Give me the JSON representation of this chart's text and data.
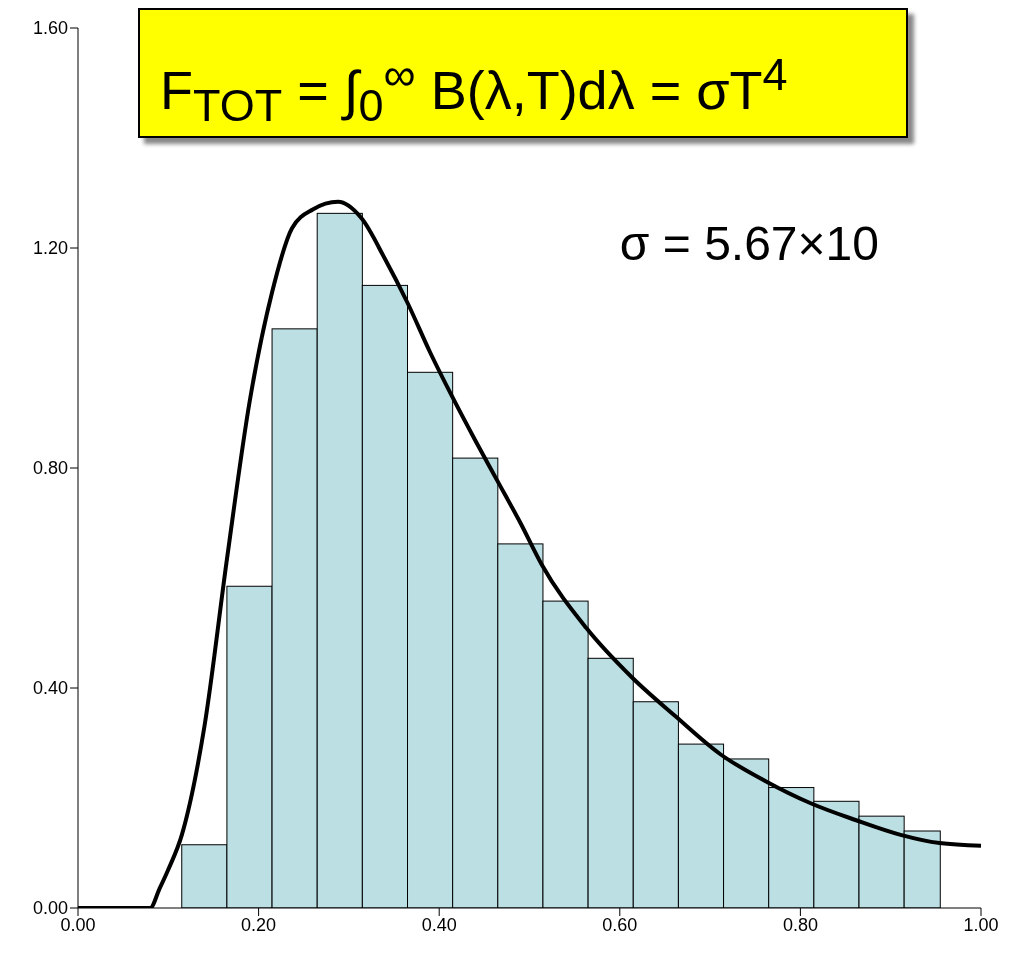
{
  "chart_data": {
    "type": "histogram",
    "title": "F$_{TOT}$ = ∫$_{0}$$^{∞}$ B(λ,T)dλ = σT$^{4}$",
    "annotations": [
      "σ = 5.67×10"
    ],
    "bins": [
      0.115,
      0.165,
      0.215,
      0.265,
      0.315,
      0.365,
      0.415,
      0.465,
      0.515,
      0.565,
      0.615,
      0.665,
      0.715,
      0.765,
      0.815,
      0.865,
      0.915,
      0.955
    ],
    "values": [
      0.115,
      0.585,
      1.053,
      1.263,
      1.132,
      0.974,
      0.818,
      0.662,
      0.558,
      0.454,
      0.375,
      0.298,
      0.271,
      0.219,
      0.194,
      0.167,
      0.14
    ],
    "color": "#bcdfe3",
    "series": [
      {
        "type": "line",
        "color": "#000000",
        "x": [
          0,
          0.08,
          0.09,
          0.1,
          0.115,
          0.14,
          0.165,
          0.19,
          0.215,
          0.237,
          0.26,
          0.288,
          0.314,
          0.34,
          0.365,
          0.39,
          0.414,
          0.44,
          0.464,
          0.49,
          0.513,
          0.563,
          0.613,
          0.662,
          0.711,
          0.761,
          0.812,
          0.861,
          0.911,
          0.954,
          1.0
        ],
        "values": [
          0,
          0,
          0.034,
          0.07,
          0.133,
          0.33,
          0.635,
          0.92,
          1.12,
          1.236,
          1.27,
          1.284,
          1.254,
          1.18,
          1.1,
          1.01,
          0.931,
          0.85,
          0.778,
          0.7,
          0.626,
          0.509,
          0.42,
          0.348,
          0.28,
          0.231,
          0.19,
          0.16,
          0.133,
          0.118,
          0.113
        ]
      }
    ],
    "xlim": [
      0,
      1
    ],
    "xticks": [
      {
        "value": 0,
        "label": "0.00"
      },
      {
        "value": 0.2,
        "label": "0.20"
      },
      {
        "value": 0.4,
        "label": "0.40"
      },
      {
        "value": 0.6,
        "label": "0.60"
      },
      {
        "value": 0.8,
        "label": "0.80"
      },
      {
        "value": 1,
        "label": "1.00"
      }
    ],
    "ylim": [
      0,
      1.6
    ],
    "yticks": [
      {
        "value": 0,
        "label": "0.00"
      },
      {
        "value": 0.4,
        "label": "0.40"
      },
      {
        "value": 0.8,
        "label": "0.80"
      },
      {
        "value": 1.2,
        "label": "1.20"
      },
      {
        "value": 1.6,
        "label": "1.60"
      }
    ],
    "grid": false,
    "legend": false
  }
}
